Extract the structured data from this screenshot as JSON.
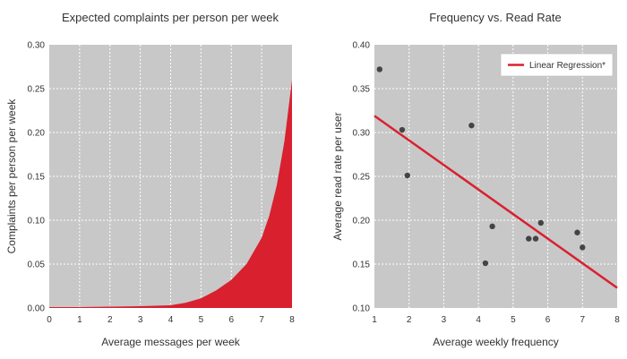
{
  "colors": {
    "plot_background": "#c8c8c8",
    "area_fill": "#d9202f",
    "regression_line": "#d9202f",
    "points": "#444444",
    "grid": "#ffffff"
  },
  "chart_data": [
    {
      "type": "area",
      "title": "Expected complaints per person per week",
      "xlabel": "Average messages per week",
      "ylabel": "Complaints per person per week",
      "xlim": [
        0,
        8
      ],
      "ylim": [
        0,
        0.3
      ],
      "x_ticks": [
        "0",
        "1",
        "2",
        "3",
        "4",
        "5",
        "6",
        "7",
        "8"
      ],
      "y_ticks": [
        "0.00",
        "0.05",
        "0.10",
        "0.15",
        "0.20",
        "0.25",
        "0.30"
      ],
      "grid": true,
      "series": [
        {
          "x": [
            0,
            1,
            2,
            3,
            4,
            4.5,
            5,
            5.5,
            6,
            6.5,
            7,
            7.25,
            7.5,
            7.75,
            8
          ],
          "y": [
            0.001,
            0.001,
            0.0015,
            0.002,
            0.003,
            0.006,
            0.011,
            0.02,
            0.032,
            0.05,
            0.08,
            0.105,
            0.14,
            0.19,
            0.26
          ]
        }
      ]
    },
    {
      "type": "scatter",
      "title": "Frequency vs. Read Rate",
      "xlabel": "Average weekly frequency",
      "ylabel": "Average read rate per user",
      "xlim": [
        1,
        8
      ],
      "ylim": [
        0.1,
        0.4
      ],
      "x_ticks": [
        "1",
        "2",
        "3",
        "4",
        "5",
        "6",
        "7",
        "8"
      ],
      "y_ticks": [
        "0.10",
        "0.15",
        "0.20",
        "0.25",
        "0.30",
        "0.35",
        "0.40"
      ],
      "grid": true,
      "legend": {
        "position": "top-right",
        "entries": [
          "Linear Regression*"
        ]
      },
      "points": [
        {
          "x": 1.15,
          "y": 0.372
        },
        {
          "x": 1.8,
          "y": 0.303
        },
        {
          "x": 1.95,
          "y": 0.251
        },
        {
          "x": 3.8,
          "y": 0.308
        },
        {
          "x": 4.2,
          "y": 0.151
        },
        {
          "x": 4.4,
          "y": 0.193
        },
        {
          "x": 5.45,
          "y": 0.179
        },
        {
          "x": 5.65,
          "y": 0.179
        },
        {
          "x": 5.8,
          "y": 0.197
        },
        {
          "x": 6.85,
          "y": 0.186
        },
        {
          "x": 7.0,
          "y": 0.169
        }
      ],
      "regression": {
        "x": [
          1,
          8
        ],
        "y": [
          0.319,
          0.123
        ]
      }
    }
  ]
}
